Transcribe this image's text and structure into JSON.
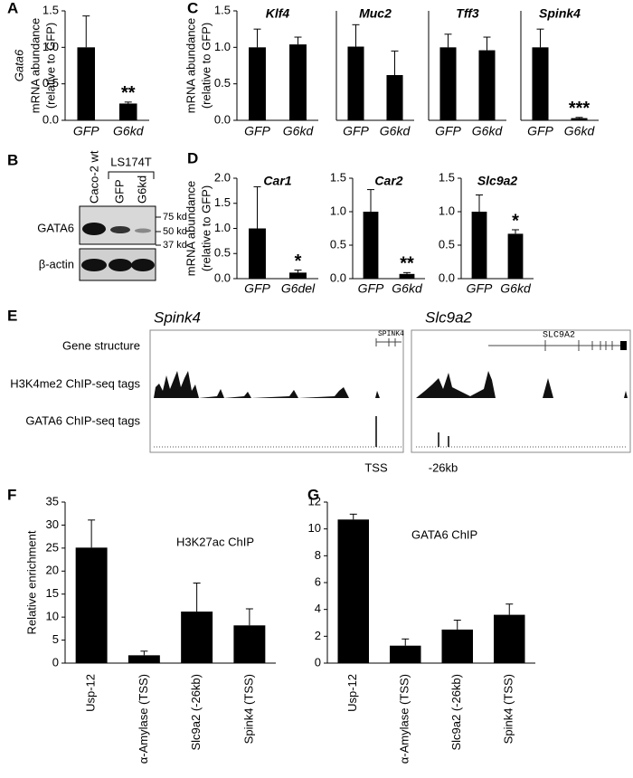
{
  "chart_data": [
    {
      "type": "bar",
      "label": "A",
      "ylabel": [
        "Gata6",
        "mRNA abundance",
        "(relative to GFP)"
      ],
      "categories": [
        "GFP",
        "G6kd"
      ],
      "values": [
        1.0,
        0.23
      ],
      "errors": [
        0.43,
        0.02
      ],
      "significance": [
        null,
        "**"
      ],
      "ylim": [
        0,
        1.5
      ],
      "yticks": [
        {
          "value": 0,
          "label": "0.0"
        },
        0.5,
        {
          "value": 1,
          "label": "1.0"
        },
        1.5
      ],
      "color": "#000000"
    },
    {
      "type": "bar",
      "label": "C",
      "title": "Klf4",
      "ylabel": [
        "mRNA abundance",
        "(relative to GFP)"
      ],
      "categories": [
        "GFP",
        "G6kd"
      ],
      "values": [
        1.0,
        1.04
      ],
      "errors": [
        0.25,
        0.1
      ],
      "ylim": [
        0,
        1.5
      ],
      "yticks": [
        {
          "value": 0,
          "label": "0.0"
        },
        0.5,
        {
          "value": 1,
          "label": "1.0"
        },
        1.5
      ],
      "color": "#000000"
    },
    {
      "type": "bar",
      "title": "Muc2",
      "categories": [
        "GFP",
        "G6kd"
      ],
      "values": [
        1.01,
        0.62
      ],
      "errors": [
        0.3,
        0.33
      ],
      "ylim": [
        0,
        1.5
      ],
      "color": "#000000"
    },
    {
      "type": "bar",
      "title": "Tff3",
      "categories": [
        "GFP",
        "G6kd"
      ],
      "values": [
        1.0,
        0.96
      ],
      "errors": [
        0.18,
        0.18
      ],
      "ylim": [
        0,
        1.5
      ],
      "color": "#000000"
    },
    {
      "type": "bar",
      "title": "Spink4",
      "categories": [
        "GFP",
        "G6kd"
      ],
      "values": [
        1.0,
        0.03
      ],
      "errors": [
        0.25,
        0.01
      ],
      "significance": [
        null,
        "***"
      ],
      "ylim": [
        0,
        1.5
      ],
      "color": "#000000"
    },
    {
      "type": "bar",
      "label": "D",
      "title": "Car1",
      "ylabel": [
        "mRNA abundance",
        "(relative to GFP)"
      ],
      "categories": [
        "GFP",
        "G6del"
      ],
      "values": [
        1.0,
        0.12
      ],
      "errors": [
        0.83,
        0.05
      ],
      "significance": [
        null,
        "*"
      ],
      "ylim": [
        0,
        2
      ],
      "yticks": [
        {
          "value": 0,
          "label": "0.0"
        },
        0.5,
        {
          "value": 1,
          "label": "1.0"
        },
        1.5,
        {
          "value": 2,
          "label": "2.0"
        }
      ],
      "color": "#000000"
    },
    {
      "type": "bar",
      "title": "Car2",
      "categories": [
        "GFP",
        "G6kd"
      ],
      "values": [
        1.0,
        0.07
      ],
      "errors": [
        0.33,
        0.02
      ],
      "significance": [
        null,
        "**"
      ],
      "ylim": [
        0,
        1.5
      ],
      "yticks": [
        {
          "value": 0,
          "label": "0.0"
        },
        0.5,
        {
          "value": 1,
          "label": "1.0"
        },
        1.5
      ],
      "color": "#000000"
    },
    {
      "type": "bar",
      "title": "Slc9a2",
      "categories": [
        "GFP",
        "G6kd"
      ],
      "values": [
        1.0,
        0.67
      ],
      "errors": [
        0.25,
        0.06
      ],
      "significance": [
        null,
        "*"
      ],
      "ylim": [
        0,
        1.5
      ],
      "yticks": [
        {
          "value": 0,
          "label": "0.0"
        },
        0.5,
        {
          "value": 1,
          "label": "1.0"
        },
        1.5
      ],
      "color": "#000000"
    },
    {
      "type": "bar",
      "label": "F",
      "annotation": "H3K27ac ChIP",
      "ylabel": [
        "Relative enrichment"
      ],
      "categories": [
        "Usp-12",
        "α-Amylase (TSS)",
        "Slc9a2 (-26kb)",
        "Spink4 (TSS)"
      ],
      "values": [
        25.1,
        1.7,
        11.2,
        8.2
      ],
      "errors": [
        6.0,
        0.9,
        6.2,
        3.6
      ],
      "ylim": [
        0,
        35
      ],
      "yticks": [
        0,
        5,
        10,
        15,
        20,
        25,
        30,
        35
      ],
      "color": "#000000"
    },
    {
      "type": "bar",
      "label": "G",
      "annotation": "GATA6 ChIP",
      "categories": [
        "Usp-12",
        "α-Amylase (TSS)",
        "Slc9a2 (-26kb)",
        "Spink4 (TSS)"
      ],
      "values": [
        10.7,
        1.3,
        2.5,
        3.6
      ],
      "errors": [
        0.4,
        0.5,
        0.7,
        0.8
      ],
      "ylim": [
        0,
        12
      ],
      "yticks": [
        0,
        2,
        4,
        6,
        8,
        10,
        12
      ],
      "color": "#000000"
    }
  ],
  "blot": {
    "label": "B",
    "lanes": [
      "Caco-2 wt",
      "GFP",
      "G6kd"
    ],
    "group": "LS174T",
    "rows": [
      "GATA6",
      "β-actin"
    ],
    "markers": [
      "75 kd",
      "50 kd",
      "37 kd"
    ]
  },
  "tracks": {
    "label": "E",
    "loci": [
      "Spink4",
      "Slc9a2"
    ],
    "rows": [
      "Gene structure",
      "H3K4me2 ChIP-seq tags",
      "GATA6 ChIP-seq tags"
    ],
    "genes": [
      "SPINK4",
      "SLC9A2"
    ],
    "positions": [
      "TSS",
      "-26kb"
    ]
  }
}
